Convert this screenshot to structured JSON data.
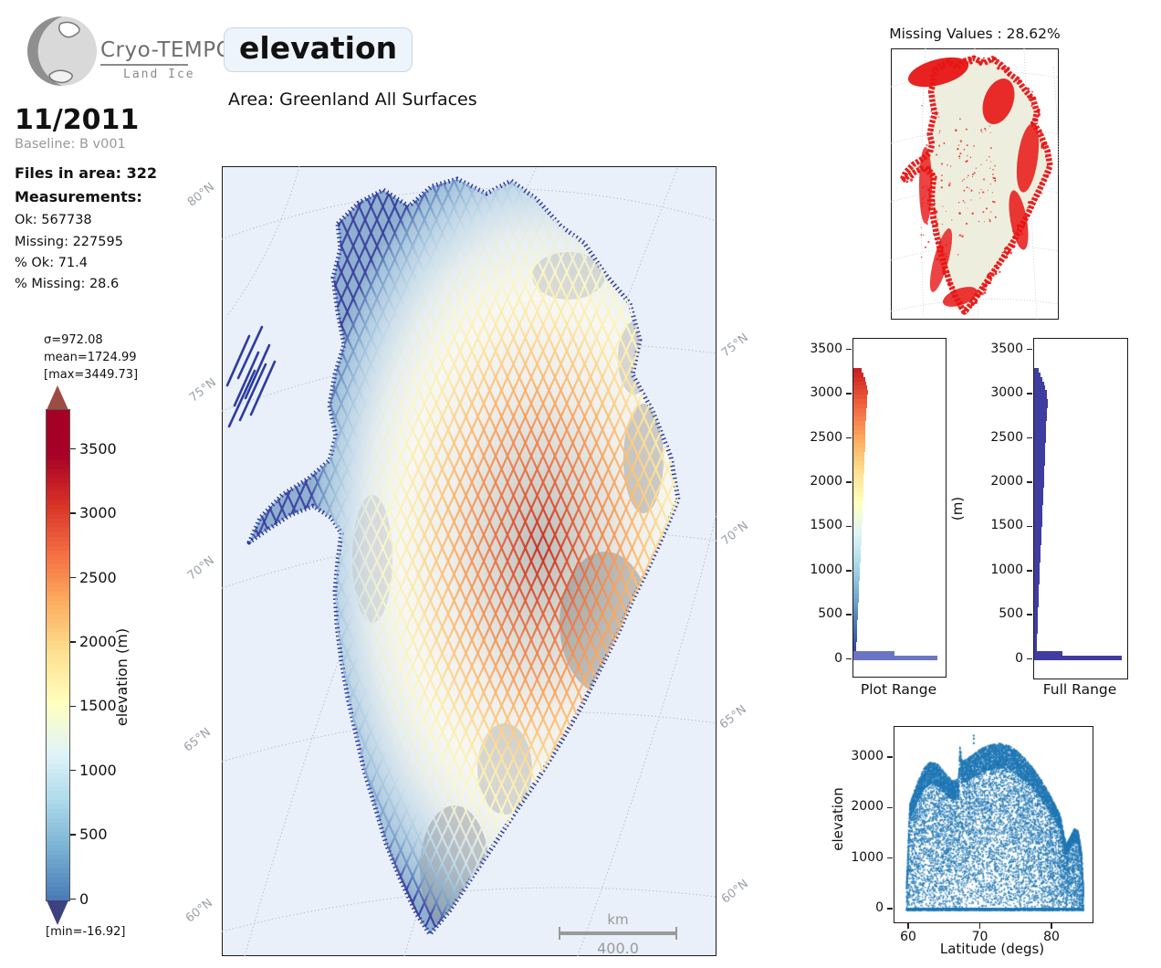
{
  "header": {
    "logo_title": "Cryo-TEMPO",
    "logo_subtitle": "Land Ice",
    "variable": "elevation",
    "area_label": "Area: Greenland All Surfaces"
  },
  "sidebar": {
    "date": "11/2011",
    "baseline": "Baseline: B v001",
    "files": "Files in area: 322",
    "measurements_label": "Measurements:",
    "ok": "Ok: 567738",
    "missing": "Missing: 227595",
    "pct_ok": "% Ok: 71.4",
    "pct_missing": "% Missing: 28.6"
  },
  "colorbar": {
    "sigma": "σ=972.08",
    "mean": "mean=1724.99",
    "max": "[max=3449.73]",
    "min": "[min=-16.92]",
    "label": "elevation (m)",
    "ticks": [
      3500,
      3000,
      2500,
      2000,
      1500,
      1000,
      500,
      0
    ],
    "over_color": "#9d4b43",
    "under_color": "#3e4180",
    "stops": [
      [
        0,
        "#313695"
      ],
      [
        0.1,
        "#4575b4"
      ],
      [
        0.2,
        "#74add1"
      ],
      [
        0.3,
        "#abd9e9"
      ],
      [
        0.4,
        "#e0f3f8"
      ],
      [
        0.5,
        "#ffffbf"
      ],
      [
        0.6,
        "#fee090"
      ],
      [
        0.7,
        "#fdae61"
      ],
      [
        0.8,
        "#f46d43"
      ],
      [
        0.9,
        "#d73027"
      ],
      [
        1,
        "#a50026"
      ]
    ]
  },
  "map": {
    "lat_labels_left": [
      "80°N",
      "75°N",
      "70°N",
      "65°N",
      "60°N"
    ],
    "lat_labels_right": [
      "75°N",
      "70°N",
      "65°N",
      "60°N"
    ],
    "scale_unit": "km",
    "scale_value": "400.0",
    "ocean_color": "#e9f0f9",
    "coast_color": "#2d3ba0"
  },
  "minimap": {
    "title": "Missing Values : 28.62%",
    "land_color": "#eeeedd",
    "missing_color": "#e71515"
  },
  "chart_data": [
    {
      "id": "plot_range",
      "type": "bar",
      "orientation": "horizontal",
      "title": "Plot Range",
      "ylabel": "",
      "yticks": [
        3500,
        3000,
        2500,
        2000,
        1500,
        1000,
        500,
        0
      ],
      "ylim": [
        -550,
        3650
      ],
      "bin_size": 50,
      "bin_start": 0,
      "color_mode": "colormap",
      "low_bar_color": "#6b74c4",
      "widths": [
        0.93,
        0.45,
        0.034,
        0.035,
        0.037,
        0.039,
        0.041,
        0.043,
        0.045,
        0.047,
        0.049,
        0.051,
        0.054,
        0.056,
        0.059,
        0.061,
        0.063,
        0.065,
        0.067,
        0.069,
        0.071,
        0.074,
        0.076,
        0.079,
        0.081,
        0.084,
        0.086,
        0.089,
        0.091,
        0.093,
        0.095,
        0.097,
        0.099,
        0.102,
        0.104,
        0.106,
        0.109,
        0.111,
        0.112,
        0.114,
        0.115,
        0.116,
        0.117,
        0.119,
        0.121,
        0.123,
        0.125,
        0.127,
        0.129,
        0.131,
        0.132,
        0.133,
        0.134,
        0.136,
        0.139,
        0.141,
        0.144,
        0.147,
        0.149,
        0.154,
        0.159,
        0.154,
        0.144,
        0.129,
        0.114,
        0.094
      ]
    },
    {
      "id": "full_range",
      "type": "bar",
      "orientation": "horizontal",
      "title": "Full Range",
      "ylabel": "(m)",
      "yticks": [
        3500,
        3000,
        2500,
        2000,
        1500,
        1000,
        500,
        0
      ],
      "ylim": [
        -550,
        3650
      ],
      "bin_size": 50,
      "bin_start": 0,
      "color_mode": "solid",
      "bar_color": "#3f3da0",
      "widths": [
        0.96,
        0.31,
        0.028,
        0.029,
        0.031,
        0.033,
        0.035,
        0.036,
        0.038,
        0.04,
        0.042,
        0.044,
        0.046,
        0.048,
        0.05,
        0.052,
        0.054,
        0.056,
        0.058,
        0.06,
        0.062,
        0.064,
        0.066,
        0.069,
        0.071,
        0.073,
        0.076,
        0.078,
        0.08,
        0.083,
        0.085,
        0.087,
        0.089,
        0.092,
        0.094,
        0.096,
        0.099,
        0.101,
        0.103,
        0.105,
        0.107,
        0.109,
        0.111,
        0.113,
        0.115,
        0.117,
        0.119,
        0.121,
        0.123,
        0.125,
        0.127,
        0.129,
        0.131,
        0.133,
        0.136,
        0.139,
        0.142,
        0.145,
        0.147,
        0.143,
        0.135,
        0.122,
        0.106,
        0.088,
        0.068,
        0.048
      ]
    },
    {
      "id": "lat_elevation_scatter",
      "type": "scatter",
      "title": "",
      "xlabel": "Latitude (degs)",
      "ylabel": "elevation",
      "xticks": [
        60,
        70,
        80
      ],
      "yticks": [
        0,
        1000,
        2000,
        3000
      ],
      "xlim": [
        58.0,
        85.6
      ],
      "ylim": [
        -253,
        3615
      ],
      "color": "#1f77b4",
      "envelope_lat": [
        59.5,
        60,
        61,
        62,
        63,
        64,
        65,
        66,
        66.8,
        67,
        67.3,
        68,
        69,
        70,
        71,
        72,
        72.8,
        74,
        75,
        76,
        77,
        78,
        79,
        80,
        81,
        81.8,
        82.3,
        83,
        83.5,
        84,
        84.3
      ],
      "envelope_max_elev": [
        300,
        2100,
        2500,
        2820,
        2950,
        2880,
        2700,
        2560,
        2600,
        3250,
        2950,
        3000,
        3100,
        3200,
        3260,
        3300,
        3300,
        3250,
        3150,
        3010,
        2850,
        2660,
        2430,
        2160,
        1880,
        1300,
        1420,
        1620,
        1560,
        1150,
        200
      ],
      "outliers": [
        [
          68.9,
          3460
        ],
        [
          68.9,
          3400
        ],
        [
          68.9,
          3310
        ]
      ]
    }
  ]
}
